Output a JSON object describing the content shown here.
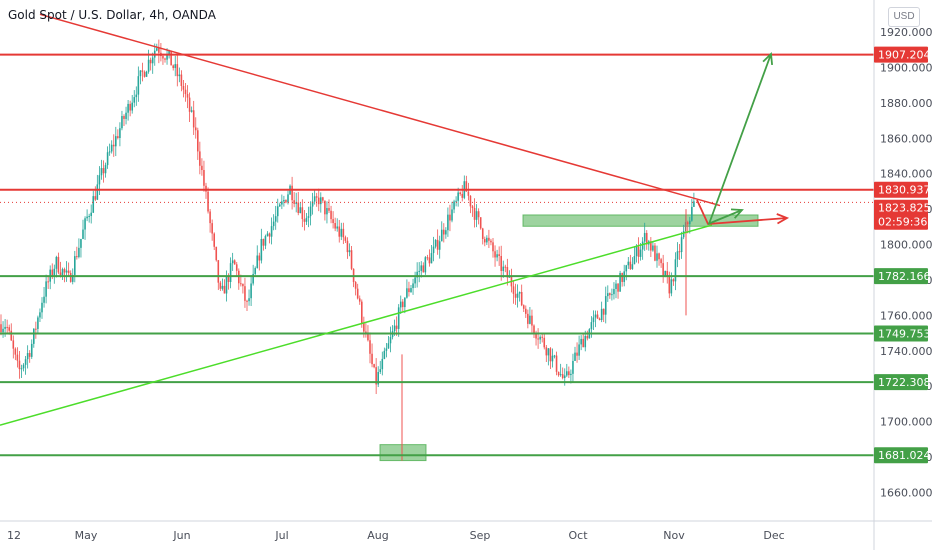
{
  "header": {
    "title": "Gold Spot / U.S. Dollar, 4h, OANDA",
    "currency_button": "USD"
  },
  "chart_data": {
    "type": "candlestick",
    "title": "Gold Spot / U.S. Dollar, 4h, OANDA",
    "symbol": "XAUUSD",
    "timeframe": "4h",
    "ylim": [
      1640,
      1930
    ],
    "y_ticks": [
      "1920.000",
      "1900.000",
      "1880.000",
      "1860.000",
      "1840.000",
      "1820.000",
      "1800.000",
      "1780.000",
      "1760.000",
      "1740.000",
      "1720.000",
      "1700.000",
      "1680.000",
      "1660.000"
    ],
    "x_ticks": [
      "12",
      "May",
      "Jun",
      "Jul",
      "Aug",
      "Sep",
      "Oct",
      "Nov",
      "Dec"
    ],
    "price_badges": [
      {
        "value": "1907.204",
        "color": "#e53935"
      },
      {
        "value": "1830.937",
        "color": "#e53935"
      },
      {
        "value": "1823.825",
        "color": "#e53935"
      },
      {
        "value": "02:59:36",
        "color": "#e53935"
      },
      {
        "value": "1782.166",
        "color": "#43a047"
      },
      {
        "value": "1749.753",
        "color": "#43a047"
      },
      {
        "value": "1722.308",
        "color": "#43a047"
      },
      {
        "value": "1681.024",
        "color": "#43a047"
      }
    ],
    "current_price": 1823.825,
    "horizontal_levels": [
      {
        "price": 1907.204,
        "color": "#e53935"
      },
      {
        "price": 1830.937,
        "color": "#e53935"
      },
      {
        "price": 1782.166,
        "color": "#43a047"
      },
      {
        "price": 1749.753,
        "color": "#43a047"
      },
      {
        "price": 1722.308,
        "color": "#43a047"
      },
      {
        "price": 1681.024,
        "color": "#43a047"
      }
    ],
    "trendlines": [
      {
        "color": "#e53935",
        "from": [
          "Apr",
          1930
        ],
        "to": [
          "Nov",
          1822
        ]
      },
      {
        "color": "#4cdd2a",
        "from": [
          "Apr",
          1698
        ],
        "to": [
          "Nov",
          1811
        ]
      }
    ],
    "zones": [
      {
        "color": "#4caf50",
        "date_range": [
          "mid-Sep",
          "Nov"
        ],
        "price_range": [
          1812,
          1815
        ]
      },
      {
        "color": "#4caf50",
        "date_range": [
          "Aug",
          "Aug"
        ],
        "price_range": [
          1678,
          1687
        ]
      }
    ],
    "price_path": [
      [
        "Apr",
        1755
      ],
      [
        "Apr",
        1728
      ],
      [
        "12",
        1742
      ],
      [
        "Apr",
        1772
      ],
      [
        "Apr",
        1790
      ],
      [
        "May",
        1780
      ],
      [
        "May",
        1815
      ],
      [
        "May",
        1845
      ],
      [
        "May",
        1870
      ],
      [
        "May",
        1895
      ],
      [
        "Jun",
        1912
      ],
      [
        "Jun",
        1905
      ],
      [
        "Jun",
        1890
      ],
      [
        "Jun",
        1865
      ],
      [
        "Jun",
        1820
      ],
      [
        "Jun",
        1770
      ],
      [
        "Jun",
        1790
      ],
      [
        "Jul",
        1765
      ],
      [
        "Jul",
        1800
      ],
      [
        "Jul",
        1815
      ],
      [
        "Jul",
        1832
      ],
      [
        "Jul",
        1815
      ],
      [
        "Jul",
        1826
      ],
      [
        "Jul",
        1812
      ],
      [
        "Aug",
        1800
      ],
      [
        "Aug",
        1760
      ],
      [
        "Aug",
        1722
      ],
      [
        "Aug",
        1745
      ],
      [
        "Aug",
        1770
      ],
      [
        "Aug",
        1785
      ],
      [
        "Aug",
        1795
      ],
      [
        "Sep",
        1815
      ],
      [
        "Sep",
        1832
      ],
      [
        "Sep",
        1808
      ],
      [
        "Sep",
        1790
      ],
      [
        "Sep",
        1775
      ],
      [
        "Sep",
        1755
      ],
      [
        "Oct",
        1740
      ],
      [
        "Oct",
        1722
      ],
      [
        "Oct",
        1745
      ],
      [
        "Oct",
        1760
      ],
      [
        "Oct",
        1775
      ],
      [
        "Oct",
        1790
      ],
      [
        "Nov",
        1805
      ],
      [
        "Nov",
        1790
      ],
      [
        "Nov",
        1775
      ],
      [
        "Nov",
        1803
      ],
      [
        "Nov",
        1823
      ]
    ],
    "notable_wicks": [
      {
        "date": "Aug",
        "low": 1678
      },
      {
        "date": "Nov",
        "low": 1760
      }
    ],
    "annotations": [
      {
        "type": "arrow",
        "color": "#e53935",
        "direction": "right",
        "description": "projection along descending trendline"
      },
      {
        "type": "arrow",
        "color": "#43a047",
        "direction": "up",
        "target": 1907.204
      },
      {
        "type": "arrow",
        "color": "#43a047",
        "direction": "right"
      }
    ],
    "grid": false
  }
}
